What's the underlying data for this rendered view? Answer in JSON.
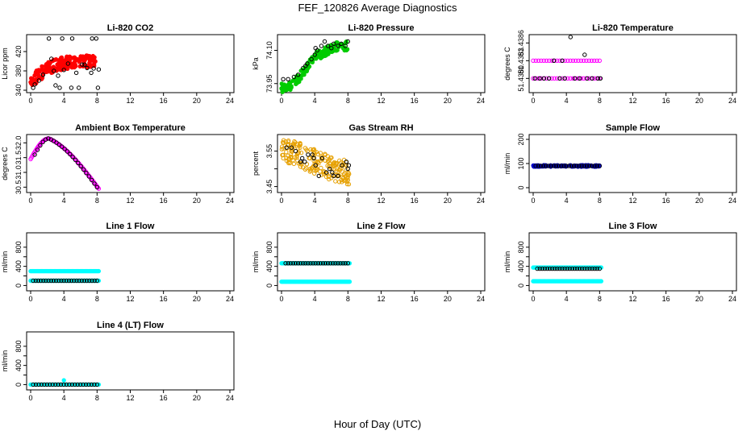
{
  "title": "FEF_120826  Average Diagnostics",
  "xlabel": "Hour of Day (UTC)",
  "chart_data": [
    {
      "type": "scatter",
      "title": "Li-820 CO2",
      "ylabel": "Licor ppm",
      "xlim": [
        0,
        24
      ],
      "xticks": [
        0,
        4,
        8,
        12,
        16,
        20,
        24
      ],
      "ylim": [
        340,
        450
      ],
      "yticks": [
        340,
        380,
        420
      ],
      "ytick_labels": [
        "340",
        "380",
        "420"
      ],
      "series": [
        {
          "name": "fill",
          "color": "#ff0000",
          "filled": true,
          "x_start": 0,
          "x_end": 8,
          "y_center": [
            357,
            372,
            385,
            392,
            396,
            398,
            399,
            399,
            398
          ],
          "y_spread": 13,
          "n": 170
        },
        {
          "name": "sample",
          "color": "#000000",
          "filled": false,
          "points": [
            [
              0.3,
              345
            ],
            [
              0.5,
              352
            ],
            [
              1,
              360
            ],
            [
              1.5,
              372
            ],
            [
              2.2,
              447
            ],
            [
              2.8,
              380
            ],
            [
              3.3,
              370
            ],
            [
              3.8,
              447
            ],
            [
              4,
              382
            ],
            [
              4.5,
              395
            ],
            [
              5,
              447
            ],
            [
              5.5,
              376
            ],
            [
              5.8,
              345
            ],
            [
              6.2,
              393
            ],
            [
              6.8,
              386
            ],
            [
              7.4,
              447
            ],
            [
              7.6,
              385
            ],
            [
              7.9,
              447
            ],
            [
              8.1,
              345
            ],
            [
              8.2,
              383
            ],
            [
              2.5,
              405
            ],
            [
              3,
              350
            ],
            [
              3.5,
              345
            ],
            [
              4.9,
              345
            ],
            [
              6.5,
              393
            ],
            [
              7.3,
              376
            ]
          ]
        }
      ]
    },
    {
      "type": "scatter",
      "title": "Li-820 Pressure",
      "ylabel": "kPa",
      "xlim": [
        0,
        24
      ],
      "xticks": [
        0,
        4,
        8,
        12,
        16,
        20,
        24
      ],
      "ylim": [
        73.92,
        74.16
      ],
      "yticks": [
        73.95,
        74.1
      ],
      "ytick_labels": [
        "73.95",
        "74.10"
      ],
      "series": [
        {
          "name": "fill",
          "color": "#00cc00",
          "filled": true,
          "x_start": 0,
          "x_end": 8,
          "y_center": [
            73.93,
            73.94,
            73.97,
            74.02,
            74.07,
            74.09,
            74.11,
            74.12,
            74.12
          ],
          "y_spread": 0.02,
          "n": 150
        },
        {
          "name": "sample",
          "color": "#000000",
          "filled": false,
          "points": [
            [
              0.2,
              73.97
            ],
            [
              0.8,
              73.97
            ],
            [
              1.5,
              73.98
            ],
            [
              2,
              73.99
            ],
            [
              2.6,
              74.02
            ],
            [
              3.1,
              74.04
            ],
            [
              3.6,
              74.06
            ],
            [
              4,
              74.08
            ],
            [
              4.3,
              74.1
            ],
            [
              4.8,
              74.12
            ],
            [
              5.2,
              74.14
            ],
            [
              5.6,
              74.12
            ],
            [
              6,
              74.11
            ],
            [
              6.3,
              74.13
            ],
            [
              6.8,
              74.12
            ],
            [
              7.2,
              74.13
            ],
            [
              7.7,
              74.12
            ],
            [
              8,
              74.14
            ],
            [
              4.1,
              74.11
            ],
            [
              2.9,
              74.03
            ]
          ]
        }
      ]
    },
    {
      "type": "scatter",
      "title": "Li-820 Temperature",
      "ylabel": "degrees C",
      "xlim": [
        0,
        24
      ],
      "xticks": [
        0,
        4,
        8,
        12,
        16,
        20,
        24
      ],
      "ylim": [
        51.4378,
        51.4387
      ],
      "yticks": [
        51.438,
        51.4383,
        51.4386
      ],
      "ytick_labels": [
        "51.4380",
        "51.4383",
        "51.4386"
      ],
      "series": [
        {
          "name": "fill",
          "color": "#ff00ff",
          "filled": false,
          "x_start": 0,
          "x_end": 8,
          "levels": [
            51.438,
            51.4383
          ],
          "n": 26
        },
        {
          "name": "sample",
          "color": "#000000",
          "filled": false,
          "points": [
            [
              0.2,
              51.438
            ],
            [
              0.8,
              51.438
            ],
            [
              1.3,
              51.438
            ],
            [
              1.9,
              51.438
            ],
            [
              2.5,
              51.4383
            ],
            [
              3.2,
              51.438
            ],
            [
              3.8,
              51.438
            ],
            [
              4.5,
              51.4387
            ],
            [
              5,
              51.438
            ],
            [
              5.6,
              51.438
            ],
            [
              6.2,
              51.4384
            ],
            [
              6.5,
              51.438
            ],
            [
              7.1,
              51.438
            ],
            [
              7.8,
              51.438
            ],
            [
              8.1,
              51.438
            ],
            [
              3.5,
              51.4383
            ]
          ]
        }
      ]
    },
    {
      "type": "scatter",
      "title": "Ambient Box Temperature",
      "ylabel": "degrees C",
      "xlim": [
        0,
        24
      ],
      "xticks": [
        0,
        4,
        8,
        12,
        16,
        20,
        24
      ],
      "ylim": [
        30.4,
        32.2
      ],
      "yticks": [
        30.5,
        31.0,
        31.5,
        32.0
      ],
      "ytick_labels": [
        "30.5",
        "31.0",
        "31.5",
        "32.0"
      ],
      "series": [
        {
          "name": "fill",
          "color": "#ff00ff",
          "filled": false,
          "x_start": 0,
          "x_end": 8.2,
          "curve": "peak",
          "peak_x": 2.2,
          "peak_y": 32.15,
          "start_y": 31.45,
          "end_y": 30.45,
          "n": 90
        },
        {
          "name": "sample",
          "color": "#000000",
          "filled": false,
          "x_start": 0.5,
          "x_end": 8,
          "curve": "peak",
          "peak_x": 2.2,
          "peak_y": 32.15,
          "start_y": 31.6,
          "end_y": 30.5,
          "n": 24
        }
      ]
    },
    {
      "type": "scatter",
      "title": "Gas Stream RH",
      "ylabel": "percent",
      "xlim": [
        0,
        24
      ],
      "xticks": [
        0,
        4,
        8,
        12,
        16,
        20,
        24
      ],
      "ylim": [
        3.44,
        3.59
      ],
      "yticks": [
        3.45,
        3.5,
        3.55
      ],
      "ytick_labels": [
        "3.45",
        "",
        "3.55"
      ],
      "series": [
        {
          "name": "fill",
          "color": "#e6a000",
          "filled": false,
          "x_start": 0,
          "x_end": 8.2,
          "y_center": [
            3.55,
            3.55,
            3.54,
            3.53,
            3.52,
            3.51,
            3.5,
            3.495,
            3.49
          ],
          "y_spread": 0.035,
          "n": 190
        },
        {
          "name": "sample",
          "color": "#000000",
          "filled": false,
          "points": [
            [
              0.6,
              3.56
            ],
            [
              1.2,
              3.56
            ],
            [
              1.7,
              3.55
            ],
            [
              2.3,
              3.52
            ],
            [
              2.8,
              3.52
            ],
            [
              3.2,
              3.54
            ],
            [
              3.7,
              3.54
            ],
            [
              4.1,
              3.51
            ],
            [
              4.5,
              3.48
            ],
            [
              4.9,
              3.53
            ],
            [
              5.4,
              3.49
            ],
            [
              5.8,
              3.5
            ],
            [
              6.3,
              3.48
            ],
            [
              6.8,
              3.48
            ],
            [
              7.3,
              3.51
            ],
            [
              7.8,
              3.52
            ],
            [
              8,
              3.5
            ],
            [
              8.1,
              3.51
            ],
            [
              3.9,
              3.53
            ],
            [
              2.5,
              3.53
            ],
            [
              6.1,
              3.49
            ]
          ]
        }
      ]
    },
    {
      "type": "scatter",
      "title": "Sample Flow",
      "ylabel": "ml/min",
      "xlim": [
        0,
        24
      ],
      "xticks": [
        0,
        4,
        8,
        12,
        16,
        20,
        24
      ],
      "ylim": [
        -10,
        210
      ],
      "yticks": [
        0,
        100,
        200
      ],
      "ytick_labels": [
        "0",
        "100",
        "200"
      ],
      "series": [
        {
          "name": "fill",
          "color": "#0000cc",
          "filled": true,
          "x_start": 0,
          "x_end": 8.1,
          "y_center": [
            90,
            90,
            90,
            90,
            90,
            90,
            90,
            90,
            90
          ],
          "y_spread": 3,
          "n": 120
        },
        {
          "name": "sample",
          "color": "#000000",
          "filled": false,
          "x_start": 0.3,
          "x_end": 8,
          "y_const": 90,
          "n": 26
        }
      ]
    },
    {
      "type": "scatter",
      "title": "Line 1 Flow",
      "ylabel": "ml/min",
      "xlim": [
        0,
        24
      ],
      "xticks": [
        0,
        4,
        8,
        12,
        16,
        20,
        24
      ],
      "ylim": [
        -60,
        1050
      ],
      "yticks": [
        0,
        200,
        400,
        600,
        800
      ],
      "ytick_labels": [
        "0",
        "",
        "400",
        "",
        "800"
      ],
      "series": [
        {
          "name": "fill",
          "color": "#00ffff",
          "filled": true,
          "x_start": 0,
          "x_end": 8.2,
          "levels": [
            300,
            100
          ],
          "n": 70
        },
        {
          "name": "sample",
          "color": "#000000",
          "filled": false,
          "x_start": 0.3,
          "x_end": 8,
          "y_const": 100,
          "n": 26
        }
      ]
    },
    {
      "type": "scatter",
      "title": "Line 2 Flow",
      "ylabel": "ml/min",
      "xlim": [
        0,
        24
      ],
      "xticks": [
        0,
        4,
        8,
        12,
        16,
        20,
        24
      ],
      "ylim": [
        -60,
        1050
      ],
      "yticks": [
        0,
        200,
        400,
        600,
        800
      ],
      "ytick_labels": [
        "0",
        "",
        "400",
        "",
        "800"
      ],
      "series": [
        {
          "name": "fill",
          "color": "#00ffff",
          "filled": true,
          "x_start": 0,
          "x_end": 8.2,
          "levels": [
            465,
            80
          ],
          "n": 70
        },
        {
          "name": "sample",
          "color": "#000000",
          "filled": false,
          "x_start": 0.5,
          "x_end": 8,
          "y_const": 465,
          "n": 26
        }
      ]
    },
    {
      "type": "scatter",
      "title": "Line 3 Flow",
      "ylabel": "ml/min",
      "xlim": [
        0,
        24
      ],
      "xticks": [
        0,
        4,
        8,
        12,
        16,
        20,
        24
      ],
      "ylim": [
        -60,
        1050
      ],
      "yticks": [
        0,
        200,
        400,
        600,
        800
      ],
      "ytick_labels": [
        "0",
        "",
        "400",
        "",
        "800"
      ],
      "series": [
        {
          "name": "fill",
          "color": "#00ffff",
          "filled": true,
          "x_start": 0,
          "x_end": 8.2,
          "levels": [
            375,
            90
          ],
          "n": 70
        },
        {
          "name": "sample",
          "color": "#000000",
          "filled": false,
          "x_start": 0.5,
          "x_end": 8,
          "y_const": 350,
          "n": 26
        }
      ]
    },
    {
      "type": "scatter",
      "title": "Line 4 (LT) Flow",
      "ylabel": "ml/min",
      "xlim": [
        0,
        24
      ],
      "xticks": [
        0,
        4,
        8,
        12,
        16,
        20,
        24
      ],
      "ylim": [
        -60,
        1050
      ],
      "yticks": [
        0,
        200,
        400,
        600,
        800
      ],
      "ytick_labels": [
        "0",
        "",
        "400",
        "",
        "800"
      ],
      "series": [
        {
          "name": "fill",
          "color": "#00ffff",
          "filled": true,
          "x_start": 0,
          "x_end": 8.2,
          "levels": [
            0
          ],
          "n": 50,
          "extra": [
            [
              4,
              90
            ]
          ]
        },
        {
          "name": "sample",
          "color": "#000000",
          "filled": false,
          "x_start": 0.3,
          "x_end": 8,
          "y_const": 0,
          "n": 24
        }
      ]
    }
  ]
}
